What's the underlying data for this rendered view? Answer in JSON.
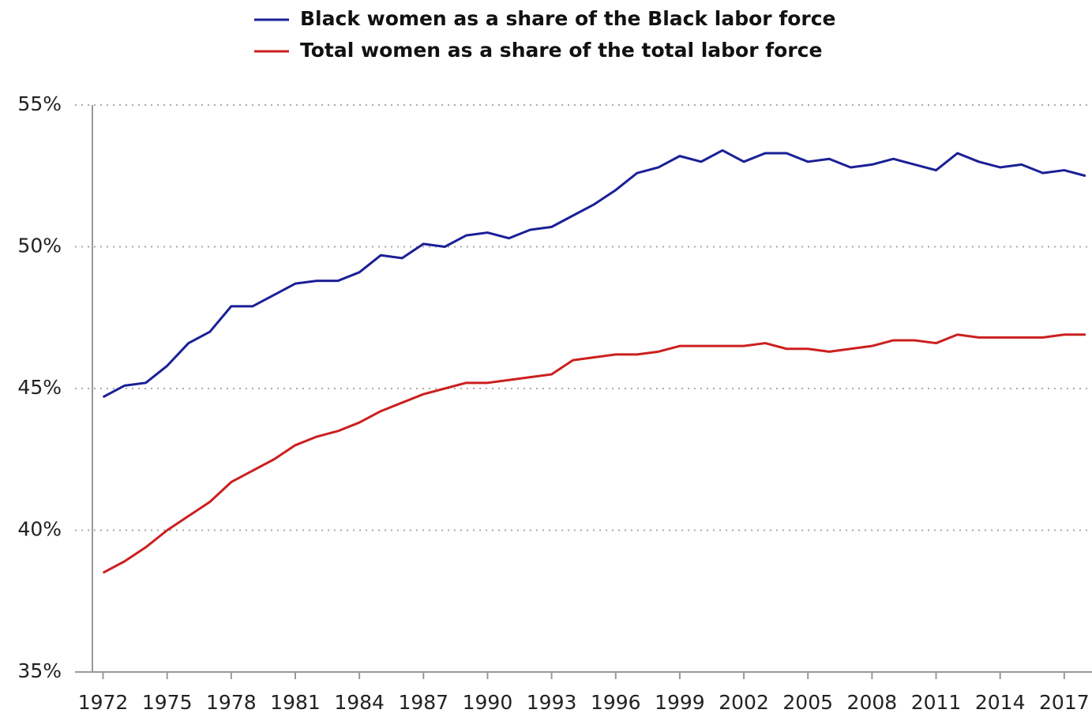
{
  "chart_data": {
    "type": "line",
    "x": [
      1972,
      1973,
      1974,
      1975,
      1976,
      1977,
      1978,
      1979,
      1980,
      1981,
      1982,
      1983,
      1984,
      1985,
      1986,
      1987,
      1988,
      1989,
      1990,
      1991,
      1992,
      1993,
      1994,
      1995,
      1996,
      1997,
      1998,
      1999,
      2000,
      2001,
      2002,
      2003,
      2004,
      2005,
      2006,
      2007,
      2008,
      2009,
      2010,
      2011,
      2012,
      2013,
      2014,
      2015,
      2016,
      2017,
      2018
    ],
    "series": [
      {
        "name": "Black women as a share of the Black labor force",
        "color": "#1a1f96",
        "values": [
          44.7,
          45.1,
          45.2,
          45.8,
          46.6,
          47.0,
          47.9,
          47.9,
          48.3,
          48.7,
          48.8,
          48.8,
          49.1,
          49.7,
          49.6,
          50.1,
          50.0,
          50.4,
          50.5,
          50.3,
          50.6,
          50.7,
          51.1,
          51.5,
          52.0,
          52.6,
          52.8,
          53.2,
          53.0,
          53.4,
          53.0,
          53.3,
          53.3,
          53.0,
          53.1,
          52.8,
          52.9,
          53.1,
          52.9,
          52.7,
          53.3,
          53.0,
          52.8,
          52.9,
          52.6,
          52.7,
          52.5
        ]
      },
      {
        "name": "Total women as a share of the total labor force",
        "color": "#cc1f1f",
        "values": [
          38.5,
          38.9,
          39.4,
          40.0,
          40.5,
          41.0,
          41.7,
          42.1,
          42.5,
          43.0,
          43.3,
          43.5,
          43.8,
          44.2,
          44.5,
          44.8,
          45.0,
          45.2,
          45.2,
          45.3,
          45.4,
          45.5,
          46.0,
          46.1,
          46.2,
          46.2,
          46.3,
          46.5,
          46.5,
          46.5,
          46.5,
          46.6,
          46.4,
          46.4,
          46.3,
          46.4,
          46.5,
          46.7,
          46.7,
          46.6,
          46.9,
          46.8,
          46.8,
          46.8,
          46.8,
          46.9,
          46.9
        ]
      }
    ],
    "xlim": [
      1971.5,
      2018.3
    ],
    "xticks": [
      1972,
      1975,
      1978,
      1981,
      1984,
      1987,
      1990,
      1993,
      1996,
      1999,
      2002,
      2005,
      2008,
      2011,
      2014,
      2017
    ],
    "ylim": [
      35,
      55
    ],
    "yticks": [
      {
        "value": 35,
        "label": "35%"
      },
      {
        "value": 40,
        "label": "40%"
      },
      {
        "value": 45,
        "label": "45%"
      },
      {
        "value": 50,
        "label": "50%"
      },
      {
        "value": 55,
        "label": "55%"
      }
    ],
    "grid": true,
    "legend": "top"
  }
}
